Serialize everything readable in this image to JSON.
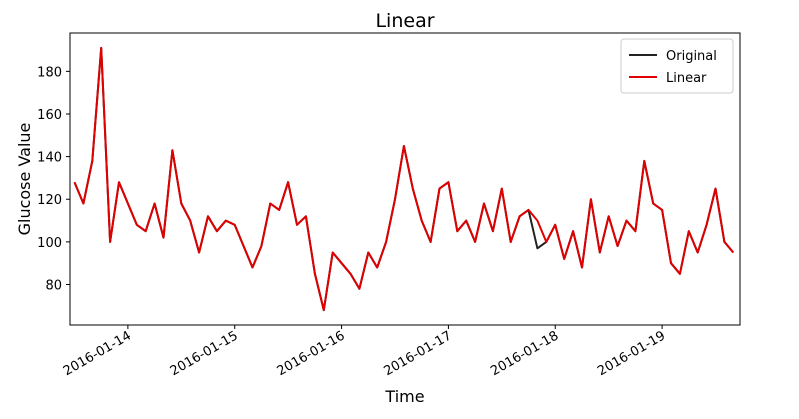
{
  "chart_data": {
    "type": "line",
    "title": "Linear",
    "xlabel": "Time",
    "ylabel": "Glucose Value",
    "x": [
      "2016-01-13T12:00",
      "2016-01-13T14:00",
      "2016-01-13T16:00",
      "2016-01-13T18:00",
      "2016-01-13T20:00",
      "2016-01-13T22:00",
      "2016-01-14T00:00",
      "2016-01-14T02:00",
      "2016-01-14T04:00",
      "2016-01-14T06:00",
      "2016-01-14T08:00",
      "2016-01-14T10:00",
      "2016-01-14T12:00",
      "2016-01-14T14:00",
      "2016-01-14T16:00",
      "2016-01-14T18:00",
      "2016-01-14T20:00",
      "2016-01-14T22:00",
      "2016-01-15T00:00",
      "2016-01-15T02:00",
      "2016-01-15T04:00",
      "2016-01-15T06:00",
      "2016-01-15T08:00",
      "2016-01-15T10:00",
      "2016-01-15T12:00",
      "2016-01-15T14:00",
      "2016-01-15T16:00",
      "2016-01-15T18:00",
      "2016-01-15T20:00",
      "2016-01-15T22:00",
      "2016-01-16T00:00",
      "2016-01-16T02:00",
      "2016-01-16T04:00",
      "2016-01-16T06:00",
      "2016-01-16T08:00",
      "2016-01-16T10:00",
      "2016-01-16T12:00",
      "2016-01-16T14:00",
      "2016-01-16T16:00",
      "2016-01-16T18:00",
      "2016-01-16T20:00",
      "2016-01-16T22:00",
      "2016-01-17T00:00",
      "2016-01-17T02:00",
      "2016-01-17T04:00",
      "2016-01-17T06:00",
      "2016-01-17T08:00",
      "2016-01-17T10:00",
      "2016-01-17T12:00",
      "2016-01-17T14:00",
      "2016-01-17T16:00",
      "2016-01-17T18:00",
      "2016-01-17T20:00",
      "2016-01-17T22:00",
      "2016-01-18T00:00",
      "2016-01-18T02:00",
      "2016-01-18T04:00",
      "2016-01-18T06:00",
      "2016-01-18T08:00",
      "2016-01-18T10:00",
      "2016-01-18T12:00",
      "2016-01-18T14:00",
      "2016-01-18T16:00",
      "2016-01-18T18:00",
      "2016-01-18T20:00",
      "2016-01-18T22:00",
      "2016-01-19T00:00",
      "2016-01-19T02:00",
      "2016-01-19T04:00",
      "2016-01-19T06:00",
      "2016-01-19T08:00",
      "2016-01-19T10:00",
      "2016-01-19T12:00",
      "2016-01-19T14:00",
      "2016-01-19T16:00"
    ],
    "series": [
      {
        "name": "Original",
        "color": "#222222",
        "values": [
          128,
          118,
          138,
          191,
          100,
          128,
          118,
          108,
          105,
          118,
          102,
          143,
          118,
          110,
          95,
          112,
          105,
          110,
          108,
          98,
          88,
          98,
          118,
          115,
          128,
          108,
          112,
          85,
          68,
          95,
          90,
          85,
          78,
          95,
          88,
          100,
          120,
          145,
          125,
          110,
          100,
          125,
          128,
          105,
          110,
          100,
          118,
          105,
          125,
          100,
          112,
          115,
          97,
          100,
          108,
          92,
          105,
          88,
          120,
          95,
          112,
          98,
          110,
          105,
          138,
          118,
          115,
          90,
          85,
          105,
          95,
          108,
          125,
          100,
          95
        ]
      },
      {
        "name": "Linear",
        "color": "#e00000",
        "values": [
          128,
          118,
          138,
          191,
          100,
          128,
          118,
          108,
          105,
          118,
          102,
          143,
          118,
          110,
          95,
          112,
          105,
          110,
          108,
          98,
          88,
          98,
          118,
          115,
          128,
          108,
          112,
          85,
          68,
          95,
          90,
          85,
          78,
          95,
          88,
          100,
          120,
          145,
          125,
          110,
          100,
          125,
          128,
          105,
          110,
          100,
          118,
          105,
          125,
          100,
          112,
          115,
          110,
          100,
          108,
          92,
          105,
          88,
          120,
          95,
          112,
          98,
          110,
          105,
          138,
          118,
          115,
          90,
          85,
          105,
          95,
          108,
          125,
          100,
          95
        ]
      }
    ],
    "xlim": [
      "2016-01-13T11:00",
      "2016-01-19T17:30"
    ],
    "xticks": [
      "2016-01-14",
      "2016-01-15",
      "2016-01-16",
      "2016-01-17",
      "2016-01-18",
      "2016-01-19"
    ],
    "ylim": [
      61,
      198
    ],
    "yticks": [
      80,
      100,
      120,
      140,
      160,
      180
    ],
    "legend": "upper right"
  }
}
